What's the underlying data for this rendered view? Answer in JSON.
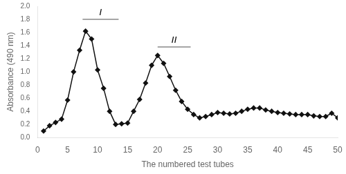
{
  "chart_data": {
    "type": "line",
    "x": [
      1,
      2,
      3,
      4,
      5,
      6,
      7,
      8,
      9,
      10,
      11,
      12,
      13,
      14,
      15,
      16,
      17,
      18,
      19,
      20,
      21,
      22,
      23,
      24,
      25,
      26,
      27,
      28,
      29,
      30,
      31,
      32,
      33,
      34,
      35,
      36,
      37,
      38,
      39,
      40,
      41,
      42,
      43,
      44,
      45,
      46,
      47,
      48,
      49,
      50
    ],
    "series": [
      {
        "color": "#111111",
        "marker": "diamond",
        "values": [
          0.1,
          0.18,
          0.23,
          0.28,
          0.57,
          1.0,
          1.33,
          1.62,
          1.5,
          1.03,
          0.75,
          0.4,
          0.2,
          0.21,
          0.22,
          0.4,
          0.58,
          0.83,
          1.1,
          1.25,
          1.13,
          0.93,
          0.72,
          0.55,
          0.43,
          0.35,
          0.3,
          0.32,
          0.35,
          0.38,
          0.37,
          0.36,
          0.37,
          0.4,
          0.43,
          0.45,
          0.45,
          0.42,
          0.4,
          0.38,
          0.37,
          0.36,
          0.35,
          0.35,
          0.35,
          0.33,
          0.32,
          0.32,
          0.37,
          0.3
        ]
      }
    ],
    "xlabel": "The numbered test tubes",
    "ylabel": "Absorbance (490 nm)",
    "xlim": [
      0,
      50
    ],
    "ylim": [
      0,
      2
    ],
    "xticks": [
      0,
      5,
      10,
      15,
      20,
      25,
      30,
      35,
      40,
      45,
      50
    ],
    "yticks": [
      {
        "value": 0,
        "label": "0.0"
      },
      0.2,
      0.4,
      0.6,
      0.8,
      {
        "value": 1.0,
        "label": "1.0"
      },
      1.2,
      1.4,
      1.6,
      1.8,
      {
        "value": 2.0,
        "label": "2.0"
      }
    ],
    "grid": false,
    "annotations": [
      {
        "text": "I",
        "x": [
          7.5,
          13.5
        ],
        "y": 1.8,
        "color": "#888888"
      },
      {
        "text": "II",
        "x": [
          20.0,
          25.5
        ],
        "y": 1.38,
        "color": "#888888"
      }
    ]
  }
}
